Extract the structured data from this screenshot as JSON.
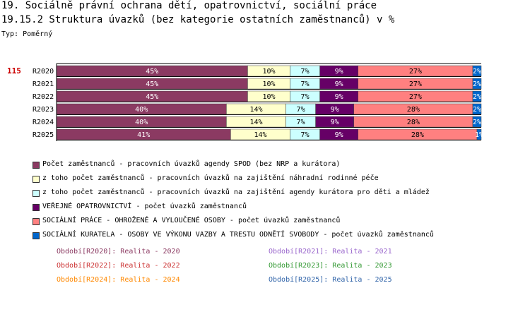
{
  "title_line1": "19. Sociálně právní ochrana dětí, opatrovnictví, sociální práce",
  "title_line2": "19.15.2 Struktura úvazků (bez kategorie ostatních zaměstnanců) v %",
  "type_label": "Typ: Poměrný",
  "marker_value": "115",
  "chart_data": {
    "type": "bar",
    "orientation": "horizontal",
    "stacked": true,
    "categories": [
      "R2020",
      "R2021",
      "R2022",
      "R2023",
      "R2024",
      "R2025"
    ],
    "series": [
      {
        "name": "Počet zaměstnanců - pracovních úvazků agendy SPOD (bez NRP a kurátora)",
        "color": "#8b3a62",
        "values": [
          45,
          45,
          45,
          40,
          40,
          41
        ],
        "labels": [
          "45%",
          "45%",
          "45%",
          "40%",
          "40%",
          "41%"
        ]
      },
      {
        "name": "z toho počet zaměstnanců - pracovních úvazků na zajištění náhradní rodinné péče",
        "color": "#ffffcc",
        "values": [
          10,
          10,
          10,
          14,
          14,
          14
        ],
        "labels": [
          "10%",
          "10%",
          "10%",
          "14%",
          "14%",
          "14%"
        ]
      },
      {
        "name": "z toho počet zaměstnanců - pracovních úvazků na zajištění agendy kurátora pro děti a mládež",
        "color": "#ccffff",
        "values": [
          7,
          7,
          7,
          7,
          7,
          7
        ],
        "labels": [
          "7%",
          "7%",
          "7%",
          "7%",
          "7%",
          "7%"
        ]
      },
      {
        "name": "VEŘEJNÉ OPATROVNICTVÍ - počet úvazků zaměstnanců",
        "color": "#660066",
        "values": [
          9,
          9,
          9,
          9,
          9,
          9
        ],
        "labels": [
          "9%",
          "9%",
          "9%",
          "9%",
          "9%",
          "9%"
        ]
      },
      {
        "name": "SOCIÁLNÍ PRÁCE - OHROŽENÉ A VYLOUČENÉ OSOBY - počet úvazků zaměstnanců",
        "color": "#ff8080",
        "values": [
          27,
          27,
          27,
          28,
          28,
          28
        ],
        "labels": [
          "27%",
          "27%",
          "27%",
          "28%",
          "28%",
          "28%"
        ]
      },
      {
        "name": "SOCIÁLNÍ KURATELA - OSOBY VE VÝKONU VAZBY A TRESTU ODNĚTÍ SVOBODY - počet úvazků zaměstnanců",
        "color": "#0066cc",
        "values": [
          2,
          2,
          2,
          2,
          2,
          1
        ],
        "labels": [
          "2%",
          "2%",
          "2%",
          "2%",
          "2%",
          "1%"
        ]
      }
    ],
    "xlim": [
      0,
      100
    ]
  },
  "periods": [
    {
      "text": "Období[R2020]: Realita - 2020",
      "color": "#8b3a62"
    },
    {
      "text": "Období[R2021]: Realita - 2021",
      "color": "#9966cc"
    },
    {
      "text": "Období[R2022]: Realita - 2022",
      "color": "#cc3333"
    },
    {
      "text": "Období[R2023]: Realita - 2023",
      "color": "#339933"
    },
    {
      "text": "Období[R2024]: Realita - 2024",
      "color": "#ff8800"
    },
    {
      "text": "Období[R2025]: Realita - 2025",
      "color": "#3366aa"
    }
  ]
}
